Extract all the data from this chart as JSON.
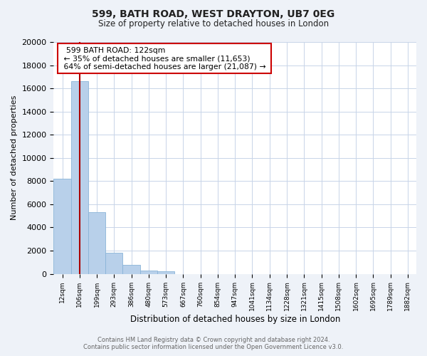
{
  "title1": "599, BATH ROAD, WEST DRAYTON, UB7 0EG",
  "title2": "Size of property relative to detached houses in London",
  "xlabel": "Distribution of detached houses by size in London",
  "ylabel": "Number of detached properties",
  "bar_labels": [
    "12sqm",
    "106sqm",
    "199sqm",
    "293sqm",
    "386sqm",
    "480sqm",
    "573sqm",
    "667sqm",
    "760sqm",
    "854sqm",
    "947sqm",
    "1041sqm",
    "1134sqm",
    "1228sqm",
    "1321sqm",
    "1415sqm",
    "1508sqm",
    "1602sqm",
    "1695sqm",
    "1789sqm",
    "1882sqm"
  ],
  "bar_values": [
    8200,
    16600,
    5300,
    1800,
    750,
    280,
    200,
    0,
    0,
    0,
    0,
    0,
    0,
    0,
    0,
    0,
    0,
    0,
    0,
    0,
    0
  ],
  "bar_color": "#b8d0ea",
  "bar_edge_color": "#8ab4d8",
  "vline_color": "#aa0000",
  "annotation_title": "599 BATH ROAD: 122sqm",
  "annotation_line1": "← 35% of detached houses are smaller (11,653)",
  "annotation_line2": "64% of semi-detached houses are larger (21,087) →",
  "annotation_box_color": "#ffffff",
  "annotation_box_edge": "#cc0000",
  "ylim": [
    0,
    20000
  ],
  "yticks": [
    0,
    2000,
    4000,
    6000,
    8000,
    10000,
    12000,
    14000,
    16000,
    18000,
    20000
  ],
  "footer1": "Contains HM Land Registry data © Crown copyright and database right 2024.",
  "footer2": "Contains public sector information licensed under the Open Government Licence v3.0.",
  "bg_color": "#eef2f8",
  "plot_bg_color": "#ffffff",
  "grid_color": "#c8d4e8"
}
